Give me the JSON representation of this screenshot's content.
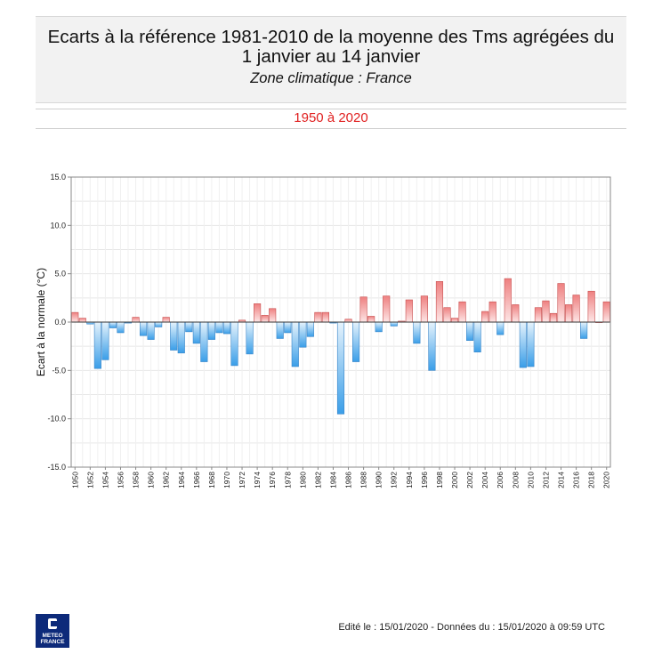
{
  "header": {
    "title_line1": "Ecarts à la référence 1981-2010 de la moyenne des Tms agrégées du",
    "title_line2": "1 janvier au 14 janvier",
    "subtitle": "Zone climatique : France",
    "period": "1950 à 2020"
  },
  "colors": {
    "positive_top": "#ee8080",
    "positive_bottom": "#fde6e6",
    "negative_top": "#e6f3fc",
    "negative_bottom": "#3a9ee8",
    "period_text": "#e02020"
  },
  "chart_data": {
    "type": "bar",
    "ylabel": "Ecart à la normale (°C)",
    "ylim": [
      -15,
      15
    ],
    "yticks": [
      "15.0",
      "10.0",
      "5.0",
      "0.0",
      "-5.0",
      "-10.0",
      "-15.0"
    ],
    "grid": true,
    "categories": [
      "1950",
      "1951",
      "1952",
      "1953",
      "1954",
      "1955",
      "1956",
      "1957",
      "1958",
      "1959",
      "1960",
      "1961",
      "1962",
      "1963",
      "1964",
      "1965",
      "1966",
      "1967",
      "1968",
      "1969",
      "1970",
      "1971",
      "1972",
      "1973",
      "1974",
      "1975",
      "1976",
      "1977",
      "1978",
      "1979",
      "1980",
      "1981",
      "1982",
      "1983",
      "1984",
      "1985",
      "1986",
      "1987",
      "1988",
      "1989",
      "1990",
      "1991",
      "1992",
      "1993",
      "1994",
      "1995",
      "1996",
      "1997",
      "1998",
      "1999",
      "2000",
      "2001",
      "2002",
      "2003",
      "2004",
      "2005",
      "2006",
      "2007",
      "2008",
      "2009",
      "2010",
      "2011",
      "2012",
      "2013",
      "2014",
      "2015",
      "2016",
      "2017",
      "2018",
      "2019",
      "2020"
    ],
    "tick_labels": [
      "1950",
      "1952",
      "1954",
      "1956",
      "1958",
      "1960",
      "1962",
      "1964",
      "1966",
      "1968",
      "1970",
      "1972",
      "1974",
      "1976",
      "1978",
      "1980",
      "1982",
      "1984",
      "1986",
      "1988",
      "1990",
      "1992",
      "1994",
      "1996",
      "1998",
      "2000",
      "2002",
      "2004",
      "2006",
      "2008",
      "2010",
      "2012",
      "2014",
      "2016",
      "2018",
      "2020"
    ],
    "values": [
      1.0,
      0.4,
      -0.2,
      -4.8,
      -3.9,
      -0.6,
      -1.1,
      -0.1,
      0.5,
      -1.4,
      -1.8,
      -0.5,
      0.5,
      -2.9,
      -3.2,
      -1.0,
      -2.2,
      -4.1,
      -1.8,
      -1.1,
      -1.2,
      -4.5,
      0.2,
      -3.3,
      1.9,
      0.7,
      1.4,
      -1.7,
      -1.1,
      -4.6,
      -2.6,
      -1.5,
      1.0,
      1.0,
      -0.1,
      -9.5,
      0.3,
      -4.1,
      2.6,
      0.6,
      -1.0,
      2.7,
      -0.4,
      0.1,
      2.3,
      -2.2,
      2.7,
      -5.0,
      4.2,
      1.5,
      0.4,
      2.1,
      -1.9,
      -3.1,
      1.1,
      2.1,
      -1.3,
      4.5,
      1.8,
      -4.7,
      -4.6,
      1.5,
      2.2,
      0.9,
      4.0,
      1.8,
      2.8,
      -1.7,
      3.2,
      0.0,
      2.1
    ]
  },
  "footer": {
    "edition": "Edité le : 15/01/2020 - Données du : 15/01/2020 à 09:59 UTC",
    "logo_line1": "METEO",
    "logo_line2": "FRANCE"
  }
}
